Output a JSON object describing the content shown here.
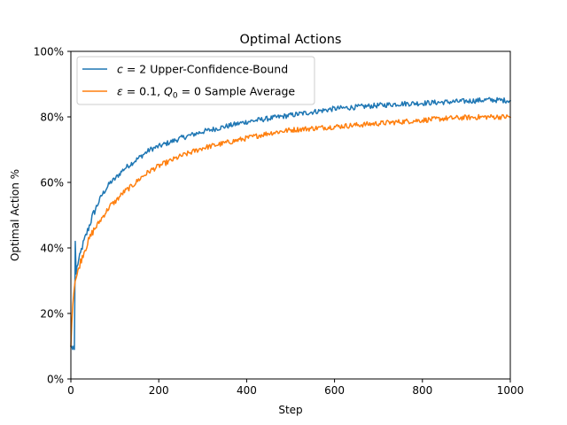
{
  "chart_data": {
    "type": "line",
    "title": "Optimal Actions",
    "xlabel": "Step",
    "ylabel": "Optimal Action %",
    "xlim": [
      0,
      1000
    ],
    "ylim": [
      0,
      1
    ],
    "x_ticks": [
      0,
      200,
      400,
      600,
      800,
      1000
    ],
    "y_ticks": [
      0,
      0.2,
      0.4,
      0.6,
      0.8,
      1.0
    ],
    "x_tick_labels": [
      "0",
      "200",
      "400",
      "600",
      "800",
      "1000"
    ],
    "y_tick_labels": [
      "0%",
      "20%",
      "40%",
      "60%",
      "80%",
      "100%"
    ],
    "grid": false,
    "legend_position": "top-left",
    "colors": {
      "ucb": "#1f77b4",
      "greedy": "#ff7f0e"
    },
    "series": [
      {
        "name": "c = 2 Upper-Confidence-Bound",
        "legend_parts": {
          "var": "c",
          "rest": " = 2 Upper-Confidence-Bound"
        },
        "color": "#1f77b4",
        "x": [
          0,
          1,
          2,
          3,
          4,
          5,
          6,
          7,
          8,
          9,
          10,
          11,
          12,
          15,
          20,
          25,
          30,
          40,
          50,
          60,
          70,
          80,
          90,
          100,
          120,
          140,
          160,
          180,
          200,
          250,
          300,
          350,
          400,
          450,
          500,
          550,
          600,
          650,
          700,
          750,
          800,
          850,
          900,
          950,
          1000
        ],
        "values": [
          0.1,
          0.09,
          0.1,
          0.1,
          0.09,
          0.1,
          0.1,
          0.1,
          0.09,
          0.1,
          0.42,
          0.3,
          0.32,
          0.35,
          0.37,
          0.4,
          0.42,
          0.46,
          0.5,
          0.53,
          0.56,
          0.58,
          0.6,
          0.61,
          0.64,
          0.66,
          0.68,
          0.7,
          0.71,
          0.735,
          0.755,
          0.77,
          0.785,
          0.795,
          0.805,
          0.815,
          0.825,
          0.83,
          0.835,
          0.84,
          0.842,
          0.845,
          0.848,
          0.852,
          0.85
        ]
      },
      {
        "name": "ε = 0.1, Q0 = 0 Sample Average",
        "legend_parts": {
          "var": "ε",
          "rest_a": " = 0.1, ",
          "var2": "Q",
          "sub": "0",
          "rest_b": " = 0 Sample Average"
        },
        "color": "#ff7f0e",
        "x": [
          0,
          1,
          2,
          3,
          5,
          8,
          10,
          15,
          20,
          25,
          30,
          40,
          50,
          60,
          70,
          80,
          90,
          100,
          120,
          140,
          160,
          180,
          200,
          250,
          300,
          350,
          400,
          450,
          500,
          550,
          600,
          650,
          700,
          750,
          800,
          850,
          900,
          950,
          1000
        ],
        "values": [
          0.1,
          0.12,
          0.17,
          0.2,
          0.24,
          0.28,
          0.3,
          0.32,
          0.35,
          0.37,
          0.39,
          0.42,
          0.45,
          0.47,
          0.49,
          0.51,
          0.53,
          0.54,
          0.57,
          0.59,
          0.615,
          0.635,
          0.65,
          0.68,
          0.705,
          0.72,
          0.735,
          0.75,
          0.76,
          0.765,
          0.77,
          0.775,
          0.78,
          0.785,
          0.79,
          0.795,
          0.798,
          0.8,
          0.8
        ]
      }
    ]
  }
}
